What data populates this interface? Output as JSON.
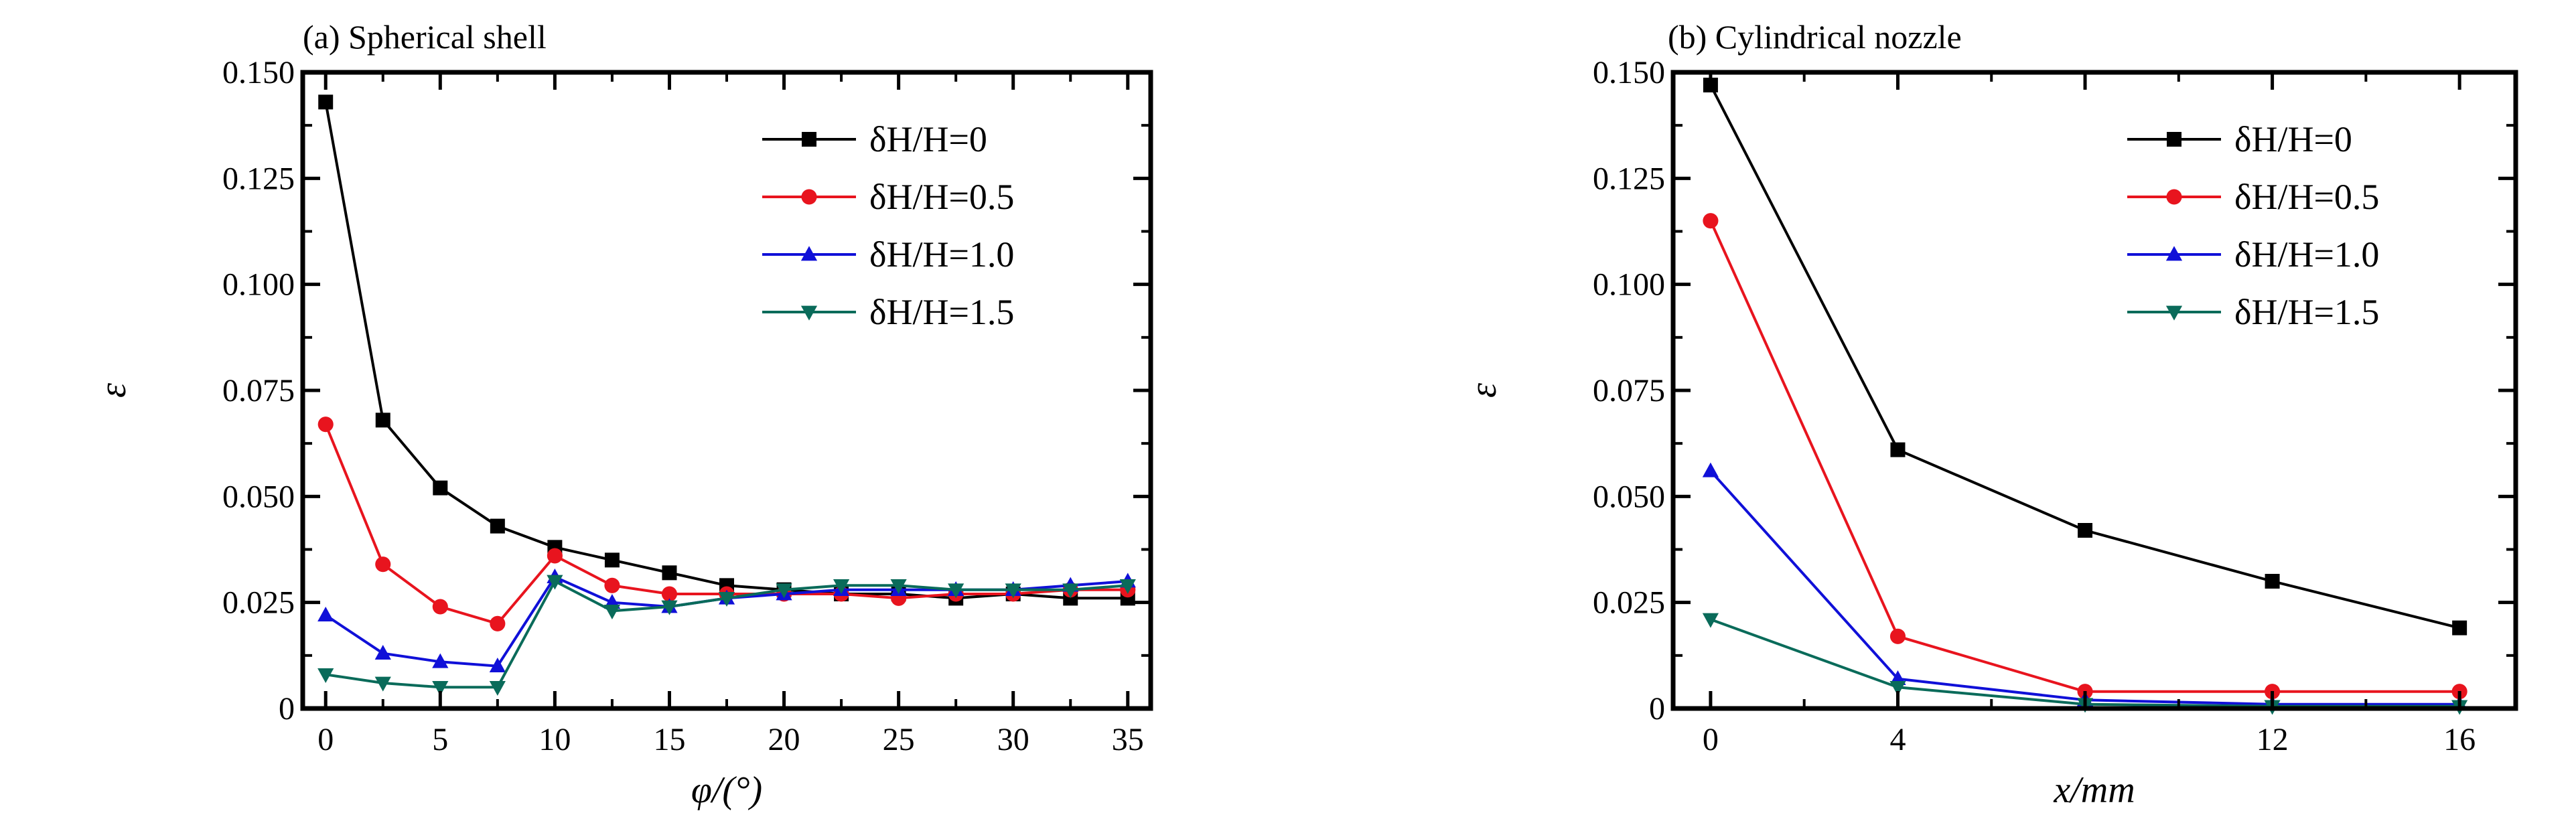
{
  "chart_data": [
    {
      "type": "line",
      "title": "(a) Spherical shell",
      "xlabel": "φ/(°)",
      "ylabel": "ε",
      "xlim": [
        -1,
        36
      ],
      "ylim": [
        0,
        0.15
      ],
      "xticks": [
        0,
        5,
        10,
        15,
        20,
        25,
        30,
        35
      ],
      "yticks": [
        0,
        0.025,
        0.05,
        0.075,
        0.1,
        0.125,
        0.15
      ],
      "ytick_labels": [
        "0",
        "0.025",
        "0.050",
        "0.075",
        "0.100",
        "0.125",
        "0.150"
      ],
      "grid": false,
      "legend_position": "top-right",
      "series": [
        {
          "name": "δH/H=0",
          "color": "#000000",
          "marker": "square",
          "x": [
            0,
            2.5,
            5,
            7.5,
            10,
            12.5,
            15,
            17.5,
            20,
            22.5,
            25,
            27.5,
            30,
            32.5,
            35
          ],
          "y": [
            0.143,
            0.068,
            0.052,
            0.043,
            0.038,
            0.035,
            0.032,
            0.029,
            0.028,
            0.027,
            0.027,
            0.026,
            0.027,
            0.026,
            0.026
          ]
        },
        {
          "name": "δH/H=0.5",
          "color": "#e8141e",
          "marker": "circle",
          "x": [
            0,
            2.5,
            5,
            7.5,
            10,
            12.5,
            15,
            17.5,
            20,
            22.5,
            25,
            27.5,
            30,
            32.5,
            35
          ],
          "y": [
            0.067,
            0.034,
            0.024,
            0.02,
            0.036,
            0.029,
            0.027,
            0.027,
            0.027,
            0.027,
            0.026,
            0.027,
            0.027,
            0.028,
            0.028
          ]
        },
        {
          "name": "δH/H=1.0",
          "color": "#1010d8",
          "marker": "triangle-up",
          "x": [
            0,
            2.5,
            5,
            7.5,
            10,
            12.5,
            15,
            17.5,
            20,
            22.5,
            25,
            27.5,
            30,
            32.5,
            35
          ],
          "y": [
            0.022,
            0.013,
            0.011,
            0.01,
            0.031,
            0.025,
            0.024,
            0.026,
            0.027,
            0.028,
            0.028,
            0.028,
            0.028,
            0.029,
            0.03
          ]
        },
        {
          "name": "δH/H=1.5",
          "color": "#0a6b5a",
          "marker": "triangle-down",
          "x": [
            0,
            2.5,
            5,
            7.5,
            10,
            12.5,
            15,
            17.5,
            20,
            22.5,
            25,
            27.5,
            30,
            32.5,
            35
          ],
          "y": [
            0.008,
            0.006,
            0.005,
            0.005,
            0.03,
            0.023,
            0.024,
            0.026,
            0.028,
            0.029,
            0.029,
            0.028,
            0.028,
            0.028,
            0.029
          ]
        }
      ]
    },
    {
      "type": "line",
      "title": "(b) Cylindrical nozzle",
      "xlabel": "x/mm",
      "ylabel": "ε",
      "xlim": [
        -0.8,
        17.2
      ],
      "ylim": [
        0,
        0.15
      ],
      "xticks": [
        0,
        4,
        12,
        16
      ],
      "yticks": [
        0,
        0.025,
        0.05,
        0.075,
        0.1,
        0.125,
        0.15
      ],
      "ytick_labels": [
        "0",
        "0.025",
        "0.050",
        "0.075",
        "0.100",
        "0.125",
        "0.150"
      ],
      "grid": false,
      "legend_position": "top-right",
      "series": [
        {
          "name": "δH/H=0",
          "color": "#000000",
          "marker": "square",
          "x": [
            0,
            4,
            8,
            12,
            16
          ],
          "y": [
            0.147,
            0.061,
            0.042,
            0.03,
            0.019
          ]
        },
        {
          "name": "δH/H=0.5",
          "color": "#e8141e",
          "marker": "circle",
          "x": [
            0,
            4,
            8,
            12,
            16
          ],
          "y": [
            0.115,
            0.017,
            0.004,
            0.004,
            0.004
          ]
        },
        {
          "name": "δH/H=1.0",
          "color": "#1010d8",
          "marker": "triangle-up",
          "x": [
            0,
            4,
            8,
            12,
            16
          ],
          "y": [
            0.056,
            0.007,
            0.002,
            0.001,
            0.001
          ]
        },
        {
          "name": "δH/H=1.5",
          "color": "#0a6b5a",
          "marker": "triangle-down",
          "x": [
            0,
            4,
            8,
            12,
            16
          ],
          "y": [
            0.021,
            0.005,
            0.001,
            0.0005,
            0.0005
          ]
        }
      ]
    }
  ]
}
